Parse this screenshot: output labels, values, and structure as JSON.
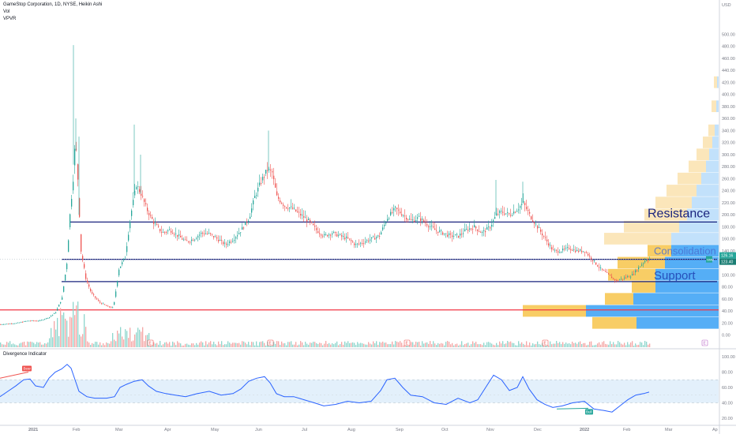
{
  "header": {
    "title": "GameStop Corporation, 1D, NYSE, Heikin Ashi",
    "vol_label": "Vol",
    "vpvr_label": "VPVR"
  },
  "osc_panel": {
    "title": "Divergence Indicator"
  },
  "colors": {
    "up": "#26a69a",
    "down": "#ef5350",
    "vol_up": "#8ed6cc",
    "vol_down": "#f4a6a5",
    "line_blue": "#1a237e",
    "line_red": "#f23645",
    "vp_blue": "#42a5f5",
    "vp_blue_light": "#bbdefb",
    "vp_yellow": "#f7c44a",
    "vp_yellow_light": "#fbe3b3",
    "osc_line": "#2962ff",
    "osc_band": "#e3f0fb"
  },
  "chart_data": [
    {
      "type": "candlestick",
      "title": "GameStop Corporation, 1D, NYSE, Heikin Ashi",
      "ylabel": "USD",
      "ylim": [
        -20,
        520
      ],
      "y_ticks": [
        -20,
        0,
        20,
        40,
        60,
        80,
        100,
        120,
        140,
        160,
        180,
        200,
        220,
        240,
        260,
        280,
        300,
        320,
        340,
        360,
        380,
        400,
        420,
        440,
        460,
        480,
        500
      ],
      "x_ticks": [
        "2021",
        "Feb",
        "Mar",
        "Apr",
        "May",
        "Jun",
        "Jul",
        "Aug",
        "Sep",
        "Oct",
        "Nov",
        "Dec",
        "2022",
        "Feb",
        "Mar",
        "Ap"
      ],
      "price_path": [
        [
          0,
          18
        ],
        [
          20,
          20
        ],
        [
          35,
          24
        ],
        [
          50,
          24
        ],
        [
          62,
          30
        ],
        [
          70,
          38
        ],
        [
          78,
          62
        ],
        [
          84,
          120
        ],
        [
          88,
          200
        ],
        [
          92,
          260
        ],
        [
          95,
          330
        ],
        [
          98,
          260
        ],
        [
          102,
          140
        ],
        [
          108,
          95
        ],
        [
          115,
          70
        ],
        [
          125,
          55
        ],
        [
          135,
          48
        ],
        [
          143,
          45
        ],
        [
          150,
          110
        ],
        [
          158,
          130
        ],
        [
          165,
          200
        ],
        [
          172,
          250
        ],
        [
          178,
          235
        ],
        [
          185,
          210
        ],
        [
          195,
          185
        ],
        [
          205,
          170
        ],
        [
          215,
          175
        ],
        [
          225,
          165
        ],
        [
          235,
          155
        ],
        [
          245,
          160
        ],
        [
          255,
          170
        ],
        [
          265,
          168
        ],
        [
          275,
          160
        ],
        [
          285,
          150
        ],
        [
          295,
          160
        ],
        [
          305,
          175
        ],
        [
          315,
          195
        ],
        [
          322,
          230
        ],
        [
          330,
          255
        ],
        [
          338,
          275
        ],
        [
          344,
          270
        ],
        [
          350,
          230
        ],
        [
          360,
          215
        ],
        [
          370,
          210
        ],
        [
          380,
          200
        ],
        [
          390,
          190
        ],
        [
          400,
          175
        ],
        [
          410,
          165
        ],
        [
          420,
          170
        ],
        [
          430,
          165
        ],
        [
          440,
          160
        ],
        [
          450,
          150
        ],
        [
          460,
          155
        ],
        [
          470,
          160
        ],
        [
          480,
          165
        ],
        [
          490,
          195
        ],
        [
          500,
          210
        ],
        [
          510,
          200
        ],
        [
          520,
          190
        ],
        [
          530,
          195
        ],
        [
          540,
          185
        ],
        [
          550,
          175
        ],
        [
          560,
          170
        ],
        [
          570,
          165
        ],
        [
          580,
          165
        ],
        [
          590,
          175
        ],
        [
          600,
          180
        ],
        [
          610,
          170
        ],
        [
          620,
          180
        ],
        [
          628,
          200
        ],
        [
          635,
          205
        ],
        [
          645,
          200
        ],
        [
          655,
          210
        ],
        [
          662,
          220
        ],
        [
          670,
          200
        ],
        [
          680,
          180
        ],
        [
          690,
          160
        ],
        [
          700,
          140
        ],
        [
          710,
          140
        ],
        [
          720,
          145
        ],
        [
          730,
          140
        ],
        [
          740,
          140
        ],
        [
          750,
          125
        ],
        [
          760,
          110
        ],
        [
          770,
          100
        ],
        [
          780,
          90
        ],
        [
          790,
          95
        ],
        [
          800,
          100
        ],
        [
          810,
          115
        ],
        [
          818,
          126
        ]
      ],
      "levels": [
        {
          "label": "Resistance",
          "price": 188
        },
        {
          "label": "",
          "price": 126
        },
        {
          "label": "Support",
          "price": 89
        },
        {
          "label": "",
          "price": 42
        }
      ],
      "zone_labels": [
        "Resistance",
        "Consolidation",
        "Support"
      ],
      "last_price_tags": [
        {
          "label": "GME",
          "value": "126.16"
        },
        {
          "label": "",
          "value": "123.40"
        }
      ],
      "earnings_markers": [
        "E",
        "E",
        "E",
        "E",
        "E"
      ],
      "volume_profile": [
        {
          "price": 420,
          "blue": 0,
          "yellow": 0,
          "light_blue": 2,
          "light_yellow": 4
        },
        {
          "price": 380,
          "blue": 0,
          "yellow": 0,
          "light_blue": 3,
          "light_yellow": 6
        },
        {
          "price": 340,
          "blue": 0,
          "yellow": 0,
          "light_blue": 5,
          "light_yellow": 8
        },
        {
          "price": 320,
          "blue": 0,
          "yellow": 0,
          "light_blue": 8,
          "light_yellow": 12
        },
        {
          "price": 300,
          "blue": 0,
          "yellow": 0,
          "light_blue": 12,
          "light_yellow": 16
        },
        {
          "price": 280,
          "blue": 0,
          "yellow": 0,
          "light_blue": 16,
          "light_yellow": 22
        },
        {
          "price": 260,
          "blue": 0,
          "yellow": 0,
          "light_blue": 22,
          "light_yellow": 30
        },
        {
          "price": 240,
          "blue": 0,
          "yellow": 0,
          "light_blue": 28,
          "light_yellow": 38
        },
        {
          "price": 220,
          "blue": 0,
          "yellow": 0,
          "light_blue": 34,
          "light_yellow": 46
        },
        {
          "price": 200,
          "blue": 0,
          "yellow": 0,
          "light_blue": 40,
          "light_yellow": 54
        },
        {
          "price": 180,
          "blue": 0,
          "yellow": 0,
          "light_blue": 50,
          "light_yellow": 70
        },
        {
          "price": 160,
          "blue": 0,
          "yellow": 0,
          "light_blue": 60,
          "light_yellow": 85
        },
        {
          "price": 140,
          "blue": 60,
          "yellow": 30,
          "light_blue": 0,
          "light_yellow": 0
        },
        {
          "price": 120,
          "blue": 68,
          "yellow": 60,
          "light_blue": 0,
          "light_yellow": 0
        },
        {
          "price": 100,
          "blue": 80,
          "yellow": 60,
          "light_blue": 0,
          "light_yellow": 0
        },
        {
          "price": 80,
          "blue": 80,
          "yellow": 30,
          "light_blue": 0,
          "light_yellow": 0
        },
        {
          "price": 60,
          "blue": 108,
          "yellow": 36,
          "light_blue": 0,
          "light_yellow": 0
        },
        {
          "price": 40,
          "blue": 168,
          "yellow": 80,
          "light_blue": 0,
          "light_yellow": 0
        },
        {
          "price": 20,
          "blue": 104,
          "yellow": 56,
          "light_blue": 0,
          "light_yellow": 0
        }
      ]
    },
    {
      "type": "line",
      "title": "Divergence Indicator",
      "ylim": [
        20,
        100
      ],
      "y_ticks": [
        20,
        40,
        60,
        80,
        100
      ],
      "band": [
        40,
        70
      ],
      "midline": 50,
      "series": [
        {
          "values": [
            [
              0,
              48
            ],
            [
              10,
              55
            ],
            [
              20,
              62
            ],
            [
              30,
              70
            ],
            [
              38,
              71
            ],
            [
              45,
              62
            ],
            [
              55,
              60
            ],
            [
              62,
              72
            ],
            [
              70,
              80
            ],
            [
              78,
              84
            ],
            [
              85,
              90
            ],
            [
              90,
              85
            ],
            [
              95,
              70
            ],
            [
              100,
              55
            ],
            [
              110,
              48
            ],
            [
              120,
              46
            ],
            [
              135,
              46
            ],
            [
              145,
              48
            ],
            [
              152,
              60
            ],
            [
              160,
              64
            ],
            [
              170,
              68
            ],
            [
              180,
              70
            ],
            [
              188,
              62
            ],
            [
              198,
              55
            ],
            [
              210,
              52
            ],
            [
              222,
              50
            ],
            [
              235,
              48
            ],
            [
              250,
              52
            ],
            [
              265,
              55
            ],
            [
              280,
              50
            ],
            [
              295,
              52
            ],
            [
              305,
              58
            ],
            [
              315,
              68
            ],
            [
              325,
              72
            ],
            [
              335,
              74
            ],
            [
              342,
              66
            ],
            [
              350,
              52
            ],
            [
              360,
              48
            ],
            [
              372,
              48
            ],
            [
              385,
              44
            ],
            [
              398,
              40
            ],
            [
              410,
              36
            ],
            [
              425,
              38
            ],
            [
              440,
              42
            ],
            [
              455,
              40
            ],
            [
              470,
              42
            ],
            [
              482,
              56
            ],
            [
              490,
              70
            ],
            [
              500,
              72
            ],
            [
              510,
              60
            ],
            [
              520,
              50
            ],
            [
              535,
              48
            ],
            [
              550,
              40
            ],
            [
              565,
              38
            ],
            [
              580,
              46
            ],
            [
              595,
              40
            ],
            [
              605,
              44
            ],
            [
              615,
              60
            ],
            [
              625,
              76
            ],
            [
              635,
              70
            ],
            [
              645,
              56
            ],
            [
              655,
              60
            ],
            [
              662,
              74
            ],
            [
              670,
              58
            ],
            [
              680,
              44
            ],
            [
              690,
              38
            ],
            [
              700,
              34
            ],
            [
              712,
              36
            ],
            [
              725,
              40
            ],
            [
              740,
              42
            ],
            [
              752,
              32
            ],
            [
              765,
              30
            ],
            [
              775,
              28
            ],
            [
              785,
              36
            ],
            [
              795,
              44
            ],
            [
              805,
              50
            ],
            [
              815,
              52
            ],
            [
              822,
              54
            ]
          ]
        }
      ],
      "annotations": [
        {
          "label": "Bear",
          "value": 80
        },
        {
          "label": "Bull",
          "value": 28
        }
      ]
    }
  ]
}
